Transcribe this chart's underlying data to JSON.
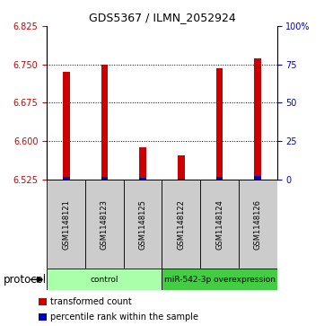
{
  "title": "GDS5367 / ILMN_2052924",
  "samples": [
    "GSM1148121",
    "GSM1148123",
    "GSM1148125",
    "GSM1148122",
    "GSM1148124",
    "GSM1148126"
  ],
  "red_bar_top": [
    6.735,
    6.75,
    6.588,
    6.572,
    6.742,
    6.762
  ],
  "blue_bar_top": [
    6.5295,
    6.5305,
    6.528,
    6.527,
    6.53,
    6.531
  ],
  "bar_bottom": 6.525,
  "ylim_left": [
    6.525,
    6.825
  ],
  "yticks_left": [
    6.525,
    6.6,
    6.675,
    6.75,
    6.825
  ],
  "ylim_right": [
    0,
    100
  ],
  "yticks_right": [
    0,
    25,
    50,
    75,
    100
  ],
  "yticklabels_right": [
    "0",
    "25",
    "50",
    "75",
    "100%"
  ],
  "red_color": "#cc0000",
  "blue_color": "#0000cc",
  "bar_width": 0.18,
  "protocol_groups": [
    {
      "label": "control",
      "indices": [
        0,
        1,
        2
      ],
      "color": "#aaffaa"
    },
    {
      "label": "miR-542-3p overexpression",
      "indices": [
        3,
        4,
        5
      ],
      "color": "#44cc44"
    }
  ],
  "protocol_label": "protocol",
  "legend_items": [
    {
      "color": "#cc0000",
      "label": "transformed count"
    },
    {
      "color": "#0000cc",
      "label": "percentile rank within the sample"
    }
  ],
  "label_color_left": "#cc0000",
  "label_color_right": "#0000cc",
  "sample_box_color": "#cccccc",
  "grid_dotted_values": [
    6.6,
    6.675,
    6.75
  ],
  "title_fontsize": 9,
  "tick_fontsize": 7,
  "sample_fontsize": 6,
  "legend_fontsize": 7,
  "protocol_fontsize": 8.5
}
